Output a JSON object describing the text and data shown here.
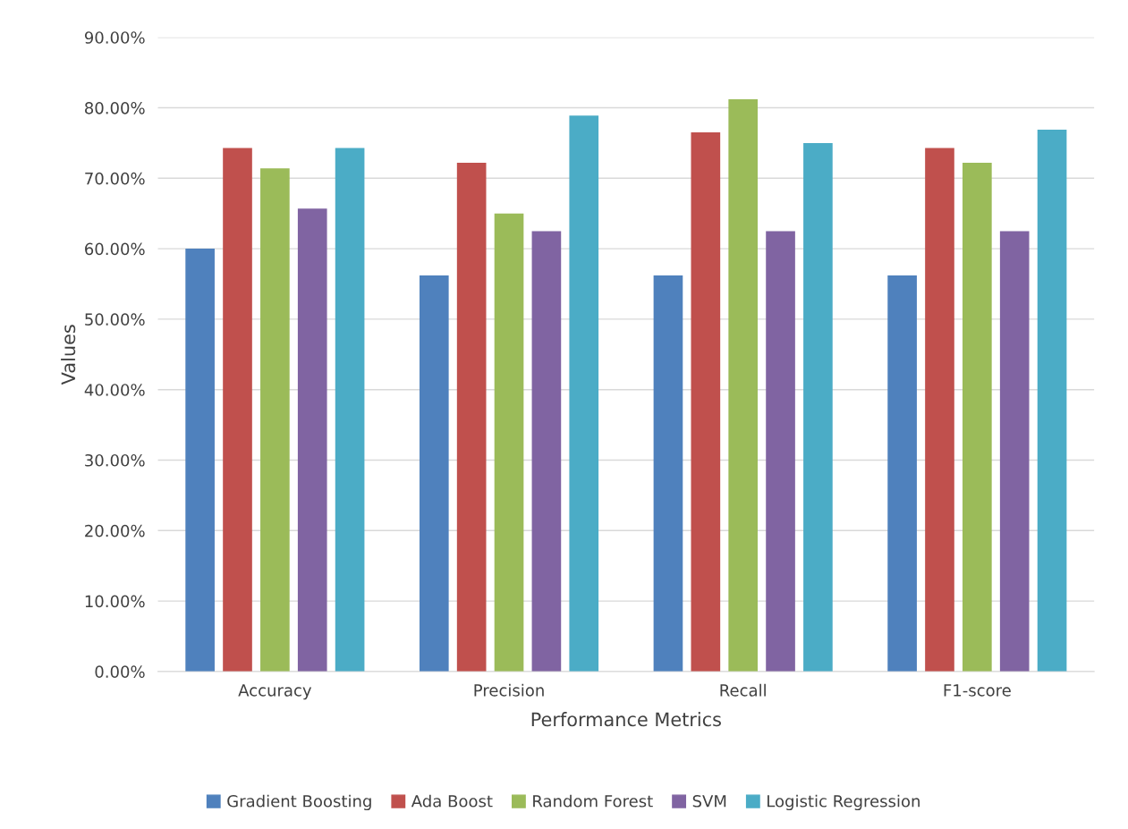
{
  "chart_data": {
    "type": "bar",
    "xlabel": "Performance Metrics",
    "ylabel": "Values",
    "categories": [
      "Accuracy",
      "Precision",
      "Recall",
      "F1-score"
    ],
    "series": [
      {
        "name": "Gradient Boosting",
        "color": "#4f81bd",
        "values": [
          60.0,
          56.2,
          56.2,
          56.2
        ]
      },
      {
        "name": "Ada Boost",
        "color": "#c0504d",
        "values": [
          74.3,
          72.2,
          76.5,
          74.3
        ]
      },
      {
        "name": "Random Forest",
        "color": "#9bbb59",
        "values": [
          71.4,
          65.0,
          81.2,
          72.2
        ]
      },
      {
        "name": "SVM",
        "color": "#8064a2",
        "values": [
          65.7,
          62.5,
          62.5,
          62.5
        ]
      },
      {
        "name": "Logistic Regression",
        "color": "#4bacc6",
        "values": [
          74.3,
          78.9,
          75.0,
          76.9
        ]
      }
    ],
    "ylim": [
      0,
      90
    ],
    "yticks": [
      {
        "value": 0,
        "label": "0.00%"
      },
      {
        "value": 10,
        "label": "10.00%"
      },
      {
        "value": 20,
        "label": "20.00%"
      },
      {
        "value": 30,
        "label": "30.00%"
      },
      {
        "value": 40,
        "label": "40.00%"
      },
      {
        "value": 50,
        "label": "50.00%"
      },
      {
        "value": 60,
        "label": "60.00%"
      },
      {
        "value": 70,
        "label": "70.00%"
      },
      {
        "value": 80,
        "label": "80.00%"
      },
      {
        "value": 90,
        "label": "90.00%"
      }
    ],
    "grid": "y",
    "legend": "bottom"
  }
}
